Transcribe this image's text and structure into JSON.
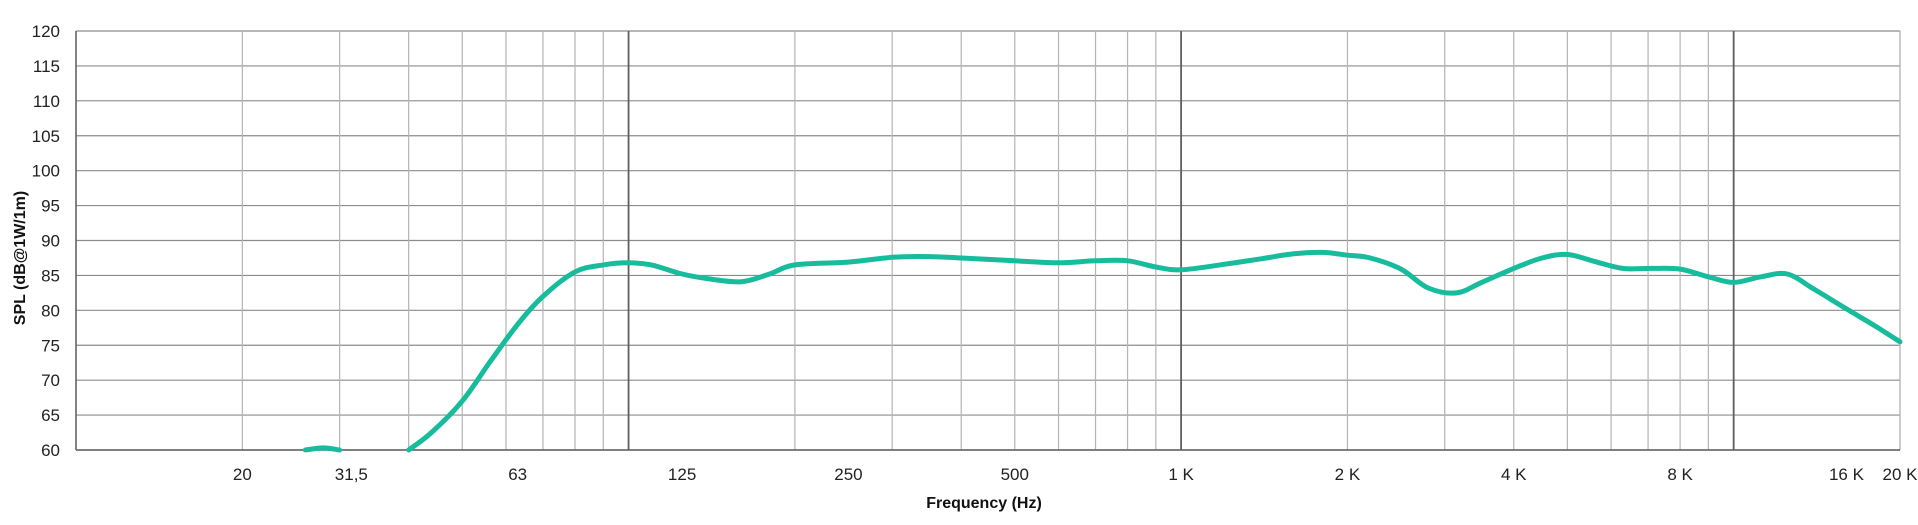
{
  "chart_data": {
    "type": "line",
    "xlabel": "Frequency (Hz)",
    "ylabel": "SPL (dB@1W/1m)",
    "x_scale": "log",
    "xlim": [
      10,
      20000
    ],
    "ylim": [
      60,
      120
    ],
    "y_ticks": [
      60,
      65,
      70,
      75,
      80,
      85,
      90,
      95,
      100,
      105,
      110,
      115,
      120
    ],
    "x_ticks": [
      {
        "value": 20,
        "label": "20"
      },
      {
        "value": 31.5,
        "label": "31,5"
      },
      {
        "value": 63,
        "label": "63"
      },
      {
        "value": 125,
        "label": "125"
      },
      {
        "value": 250,
        "label": "250"
      },
      {
        "value": 500,
        "label": "500"
      },
      {
        "value": 1000,
        "label": "1 K"
      },
      {
        "value": 2000,
        "label": "2 K"
      },
      {
        "value": 4000,
        "label": "4 K"
      },
      {
        "value": 8000,
        "label": "8 K"
      },
      {
        "value": 16000,
        "label": "16 K"
      },
      {
        "value": 20000,
        "label": "20 K"
      }
    ],
    "grid": true,
    "line_color": "#16BC9C",
    "series": [
      {
        "x": [
          26,
          28,
          30
        ],
        "y": [
          60,
          60.3,
          60
        ]
      },
      {
        "x": [
          40,
          44,
          50,
          56,
          63,
          70,
          80,
          90,
          100,
          110,
          125,
          140,
          160,
          180,
          200,
          250,
          300,
          350,
          400,
          500,
          600,
          700,
          800,
          900,
          1000,
          1200,
          1400,
          1600,
          1800,
          2000,
          2200,
          2500,
          2800,
          3150,
          3500,
          4000,
          4500,
          5000,
          5600,
          6300,
          7100,
          8000,
          9000,
          10000,
          11200,
          12500,
          14000,
          16000,
          18000,
          20000
        ],
        "y": [
          60,
          62.5,
          67,
          72.5,
          78,
          82,
          85.5,
          86.5,
          86.8,
          86.5,
          85.2,
          84.5,
          84.1,
          85.2,
          86.5,
          86.9,
          87.6,
          87.7,
          87.5,
          87.1,
          86.8,
          87.1,
          87.1,
          86.2,
          85.8,
          86.6,
          87.4,
          88.1,
          88.3,
          87.9,
          87.5,
          85.9,
          83.2,
          82.5,
          84,
          86,
          87.5,
          88,
          87,
          86,
          86,
          85.9,
          84.8,
          84,
          84.8,
          85.2,
          83,
          80.2,
          77.8,
          75.5
        ]
      }
    ]
  }
}
